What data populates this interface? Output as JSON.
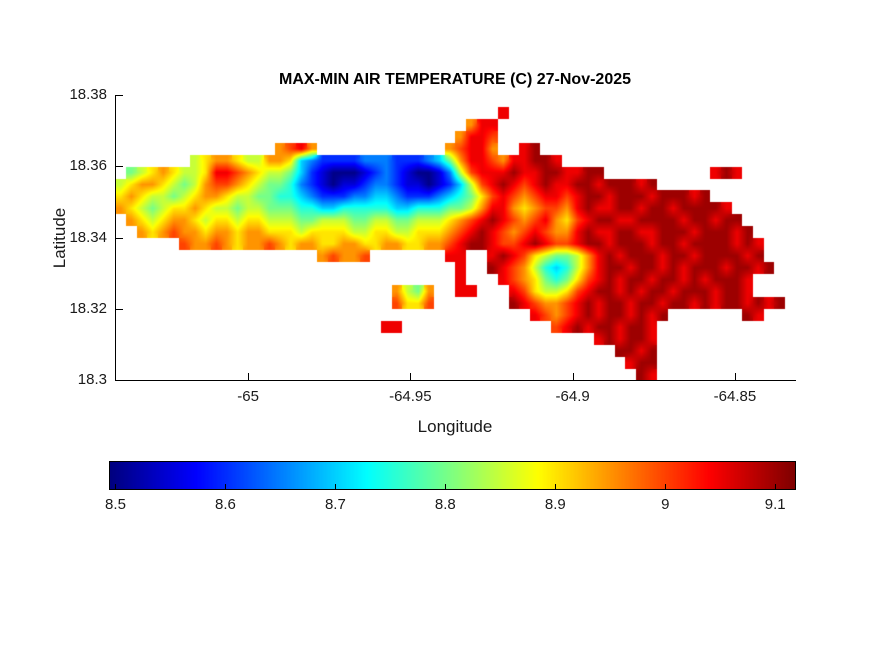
{
  "chart_data": {
    "type": "heatmap",
    "title": "MAX-MIN AIR TEMPERATURE (C) 27-Nov-2025",
    "xlabel": "Longitude",
    "ylabel": "Latitude",
    "units": "C",
    "colormap": "jet",
    "xlim": [
      -65.041,
      -64.8315
    ],
    "ylim": [
      18.3,
      18.38
    ],
    "xticks": [
      -65,
      -64.95,
      -64.9,
      -64.85
    ],
    "xtick_labels": [
      "-65",
      "-64.95",
      "-64.9",
      "-64.85"
    ],
    "yticks": [
      18.3,
      18.32,
      18.34,
      18.36,
      18.38
    ],
    "ytick_labels": [
      "18.3",
      "18.32",
      "18.34",
      "18.36",
      "18.38"
    ],
    "colorbar": {
      "orientation": "horizontal",
      "vmin": 8.495,
      "vmax": 9.118,
      "ticks": [
        8.5,
        8.6,
        8.7,
        8.8,
        8.9,
        9,
        9.1
      ],
      "tick_labels": [
        "8.5",
        "8.6",
        "8.7",
        "8.8",
        "8.9",
        "9",
        "9.1"
      ]
    },
    "grid": {
      "cols": 64,
      "nodata_char": ".",
      "value_of_char": {
        "a": 8.5,
        "b": 8.55,
        "c": 8.6,
        "d": 8.65,
        "e": 8.7,
        "f": 8.75,
        "g": 8.8,
        "h": 8.85,
        "i": 8.9,
        "j": 8.95,
        "k": 9.0,
        "l": 9.05,
        "m": 9.1
      },
      "rows": [
        "................................................................",
        "....................................l...........................",
        ".................................jll............................",
        "................................jllk............................",
        "...............jklj............jkllj..lm........................",
        ".......hijjihhjjiedccccdddcccdegjllkjllmml......................",
        ".ghijihhillkjihhgecbaaabcdcbaabdhklllmllmmllmm..........lml.....",
        "hijjihghjkkjihggfdcbabbcddcbbabcehklmlklmllmmlmmmlm.............",
        "ijihhghijjihhggffedcccddeedcccdefgiklkjkllklmmlmmmlmmmlm........",
        "jihghiijihhghhgggffeefffffeefffgghjlljijkkjlmllmmlmmlmmmml......",
        ".jihijjihiihiihhhgghhhgghhgghhhijklmlkjkljiklmmllmmmmlmmlmm.....",
        "..jijkjjijjijjiiihiiiihhiihhiiijklmlkjklkjjlmllmmllmmmlmmmlm....",
        "......kjjkjijjkjijjiijjiijjiijjklmmlkklmlkklmmlmmmlmmlmmmmlml...",
        "...................jkjjk.......ll..lmlkihgghjlmlmmmlmmlmmmmlm...",
        "................................l..mlkjhfefhjlmmlmmlmlmmmlmmlm..",
        "................................l...lkjigfgiklmlmmlmmlmlmmml....",
        "..........................jhgj..ll...lkihhiklmmlmlmmlmmmlmml....",
        "..........................kiik.......mlkjjklmlmmlmmlmmlmlmmlmlm.",
        ".......................................lkjklmlmmlmlm.......ml...",
        ".........................ll..............klmlmmlmml.............",
        ".............................................lmlmml.............",
        "...............................................mmlm.............",
        "................................................lmm.............",
        ".................................................ml............."
      ]
    }
  }
}
